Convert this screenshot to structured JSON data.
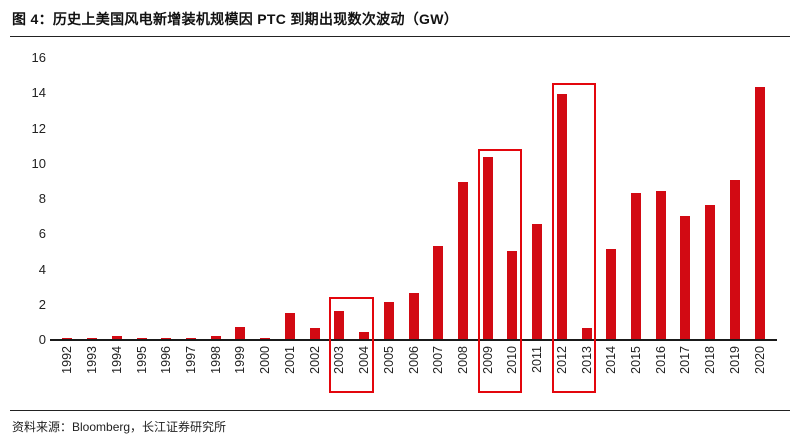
{
  "header": {
    "title": "图 4：历史上美国风电新增装机规模因 PTC 到期出现数次波动（GW）"
  },
  "footer": {
    "source": "资料来源：Bloomberg，长江证券研究所"
  },
  "chart_data": {
    "type": "bar",
    "title": "历史上美国风电新增装机规模因 PTC 到期出现数次波动（GW）",
    "categories": [
      "1992",
      "1993",
      "1994",
      "1995",
      "1996",
      "1997",
      "1998",
      "1999",
      "2000",
      "2001",
      "2002",
      "2003",
      "2004",
      "2005",
      "2006",
      "2007",
      "2008",
      "2009",
      "2010",
      "2011",
      "2012",
      "2013",
      "2014",
      "2015",
      "2016",
      "2017",
      "2018",
      "2019",
      "2020"
    ],
    "values": [
      0.03,
      0.03,
      0.15,
      0.04,
      0.02,
      0.02,
      0.15,
      0.7,
      0.06,
      1.5,
      0.6,
      1.6,
      0.4,
      2.1,
      2.6,
      5.3,
      8.9,
      10.3,
      5.0,
      6.5,
      13.9,
      0.65,
      5.1,
      8.3,
      8.4,
      7.0,
      7.6,
      9.0,
      14.3
    ],
    "xlabel": "",
    "ylabel": "",
    "ylim": [
      0,
      16
    ],
    "ytick_step": 2,
    "grid": false,
    "legend": "none",
    "bar_color": "#d20a13",
    "highlight_box_color": "#e3060d",
    "highlight_boxes": [
      {
        "from": "2003",
        "to": "2004",
        "top_value": 2.4
      },
      {
        "from": "2009",
        "to": "2010",
        "top_value": 10.8
      },
      {
        "from": "2012",
        "to": "2013",
        "top_value": 14.5
      }
    ]
  }
}
